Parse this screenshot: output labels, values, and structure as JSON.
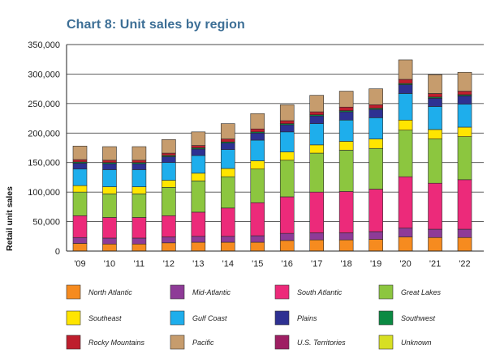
{
  "chart_data": {
    "type": "bar",
    "stacked": true,
    "title": "Chart 8: Unit sales by region",
    "xlabel": "",
    "ylabel": "Retail unit sales",
    "ylim": [
      0,
      350000
    ],
    "yticks": [
      0,
      50000,
      100000,
      150000,
      200000,
      250000,
      300000,
      350000
    ],
    "ytick_labels": [
      "0",
      "50,000",
      "100,000",
      "150,000",
      "200,000",
      "250,000",
      "300,000",
      "350,000"
    ],
    "categories": [
      "'09",
      "'10",
      "'11",
      "'12",
      "'13",
      "'14",
      "'15",
      "'16",
      "'17",
      "'18",
      "'19",
      "'20",
      "'21",
      "'22"
    ],
    "grid": true,
    "series": [
      {
        "name": "North Atlantic",
        "color": "#f68b1f",
        "values": [
          13000,
          12000,
          12000,
          14000,
          15000,
          15000,
          15000,
          18000,
          19000,
          19000,
          20000,
          24000,
          23000,
          23000
        ]
      },
      {
        "name": "Mid-Atlantic",
        "color": "#8e3b97",
        "values": [
          10000,
          10000,
          10000,
          10000,
          10000,
          10000,
          11000,
          12000,
          12000,
          12000,
          13000,
          15000,
          14000,
          14000
        ]
      },
      {
        "name": "South Atlantic",
        "color": "#ec2a7a",
        "values": [
          37000,
          35000,
          35000,
          36000,
          41000,
          48000,
          56000,
          62000,
          69000,
          70000,
          72000,
          87000,
          78000,
          84000
        ]
      },
      {
        "name": "Great Lakes",
        "color": "#8cc63f",
        "values": [
          40000,
          40000,
          40000,
          48000,
          53000,
          53000,
          57000,
          62000,
          66000,
          70000,
          69000,
          79000,
          75000,
          73000
        ]
      },
      {
        "name": "Southeast",
        "color": "#ffe500",
        "values": [
          11000,
          12000,
          12000,
          12000,
          13000,
          14000,
          14000,
          14000,
          14000,
          15000,
          16000,
          17000,
          16000,
          16000
        ]
      },
      {
        "name": "Gulf Coast",
        "color": "#1eaeec",
        "values": [
          28000,
          29000,
          29000,
          30000,
          30000,
          32000,
          35000,
          34000,
          36000,
          36000,
          36000,
          45000,
          39000,
          39000
        ]
      },
      {
        "name": "Plains",
        "color": "#2e3192",
        "values": [
          10000,
          10000,
          10000,
          10000,
          11000,
          11000,
          12000,
          12000,
          13000,
          14000,
          14000,
          15000,
          14000,
          14000
        ]
      },
      {
        "name": "Southwest",
        "color": "#0b8a43",
        "values": [
          2000,
          2000,
          2000,
          2000,
          2000,
          2000,
          2000,
          2000,
          2000,
          2000,
          2000,
          2000,
          2000,
          2000
        ]
      },
      {
        "name": "Rocky Mountains",
        "color": "#be1e2d",
        "values": [
          4000,
          4000,
          4000,
          4000,
          4000,
          5000,
          5000,
          5000,
          5000,
          6000,
          6000,
          7000,
          6000,
          6000
        ]
      },
      {
        "name": "Pacific",
        "color": "#c69c6d",
        "values": [
          23000,
          23000,
          23000,
          23000,
          23000,
          26000,
          26000,
          27000,
          28000,
          27000,
          27000,
          33000,
          32000,
          32000
        ]
      },
      {
        "name": "U.S. Territories",
        "color": "#9e1f63",
        "values": [
          0,
          0,
          0,
          0,
          0,
          0,
          0,
          0,
          0,
          0,
          0,
          0,
          0,
          0
        ]
      },
      {
        "name": "Unknown",
        "color": "#d7df23",
        "values": [
          0,
          0,
          0,
          0,
          0,
          0,
          0,
          0,
          0,
          0,
          0,
          0,
          0,
          0
        ]
      }
    ]
  }
}
